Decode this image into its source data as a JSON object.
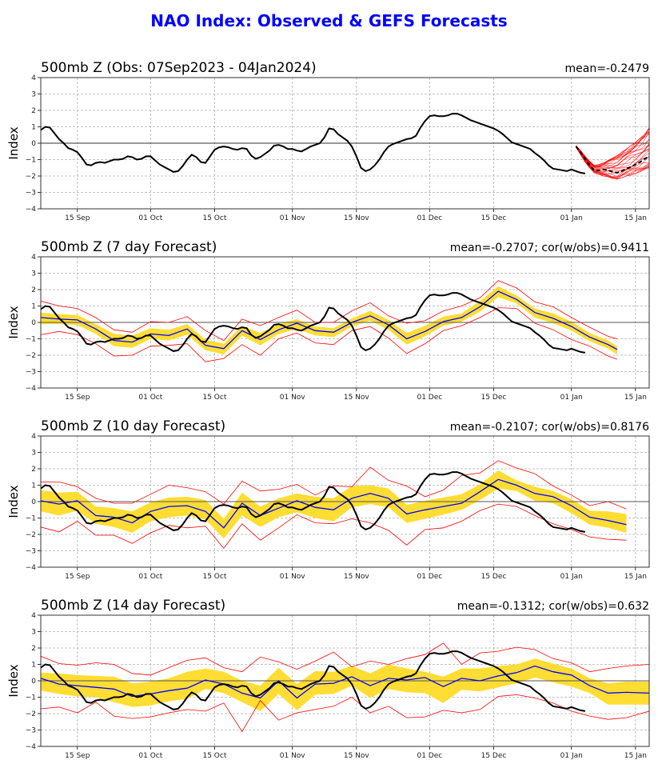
{
  "suptitle": "NAO Index: Observed & GEFS Forecasts",
  "colors": {
    "title": "#0000ff",
    "observed": "#000000",
    "ensemble_mean": "#0000ff",
    "spread_band": "#ffdd33",
    "extreme_lines": "#ff0000",
    "grid": "#b0b0b0"
  },
  "chart_data": [
    {
      "type": "line",
      "title": "500mb Z (Obs: 07Sep2023 - 04Jan2024)",
      "stat_label": "mean=-0.2479",
      "xlabel": "",
      "ylabel": "Index",
      "ylim": [
        -4,
        4
      ],
      "yticks": [
        "4",
        "3",
        "2",
        "1",
        "0",
        "-1",
        "-2",
        "-3",
        "-4"
      ],
      "xticks": [
        "15 Sep",
        "01 Oct",
        "15 Oct",
        "01 Nov",
        "15 Nov",
        "01 Dec",
        "15 Dec",
        "01 Jan",
        "15 Jan"
      ],
      "xtick_days": [
        8,
        24,
        38,
        55,
        69,
        85,
        99,
        116,
        130
      ],
      "xlim_days": [
        0,
        133
      ],
      "grid": true,
      "observed": {
        "name": "Observed NAO",
        "days": [
          0,
          1,
          2,
          3,
          4,
          5,
          6,
          7,
          8,
          9,
          10,
          11,
          12,
          13,
          14,
          15,
          16,
          17,
          18,
          19,
          20,
          21,
          22,
          23,
          24,
          25,
          26,
          27,
          28,
          29,
          30,
          31,
          32,
          33,
          34,
          35,
          36,
          37,
          38,
          39,
          40,
          41,
          42,
          43,
          44,
          45,
          46,
          47,
          48,
          49,
          50,
          51,
          52,
          53,
          54,
          55,
          56,
          57,
          58,
          59,
          60,
          61,
          62,
          63,
          64,
          65,
          66,
          67,
          68,
          69,
          70,
          71,
          72,
          73,
          74,
          75,
          76,
          77,
          78,
          79,
          80,
          81,
          82,
          83,
          84,
          85,
          86,
          87,
          88,
          89,
          90,
          91,
          92,
          93,
          94,
          95,
          96,
          97,
          98,
          99,
          100,
          101,
          102,
          103,
          104,
          105,
          106,
          107,
          108,
          109,
          110,
          111,
          112,
          113,
          114,
          115,
          116,
          117,
          118,
          119
        ],
        "values": [
          0.8,
          1.0,
          0.95,
          0.6,
          0.25,
          0.0,
          -0.3,
          -0.4,
          -0.55,
          -0.9,
          -1.3,
          -1.35,
          -1.2,
          -1.15,
          -1.2,
          -1.1,
          -1.0,
          -1.0,
          -0.95,
          -0.8,
          -0.85,
          -1.0,
          -0.95,
          -0.8,
          -0.8,
          -1.05,
          -1.3,
          -1.45,
          -1.6,
          -1.75,
          -1.7,
          -1.4,
          -1.0,
          -0.7,
          -0.85,
          -1.15,
          -1.2,
          -0.8,
          -0.4,
          -0.25,
          -0.2,
          -0.25,
          -0.35,
          -0.4,
          -0.3,
          -0.35,
          -0.75,
          -0.95,
          -0.85,
          -0.65,
          -0.45,
          -0.15,
          -0.1,
          -0.2,
          -0.35,
          -0.35,
          -0.45,
          -0.5,
          -0.35,
          -0.2,
          -0.1,
          0.0,
          0.35,
          0.9,
          0.85,
          0.55,
          0.35,
          0.15,
          -0.2,
          -0.8,
          -1.5,
          -1.7,
          -1.6,
          -1.35,
          -1.0,
          -0.55,
          -0.2,
          -0.05,
          0.05,
          0.15,
          0.25,
          0.3,
          0.45,
          0.95,
          1.35,
          1.65,
          1.7,
          1.65,
          1.65,
          1.7,
          1.8,
          1.8,
          1.7,
          1.55,
          1.4,
          1.3,
          1.2,
          1.1,
          1.0,
          0.9,
          0.75,
          0.55,
          0.3,
          0.05,
          -0.05,
          -0.15,
          -0.25,
          -0.35,
          -0.6,
          -0.8,
          -1.05,
          -1.35,
          -1.55,
          -1.6,
          -1.65,
          -1.7,
          -1.6,
          -1.7,
          -1.8,
          -1.85
        ]
      },
      "gefs_forecast": {
        "name": "GEFS ensemble members (from 04Jan2024)",
        "mean_days": [
          117,
          118,
          119,
          120,
          121,
          122,
          123,
          124,
          125,
          126,
          127,
          128,
          129,
          130,
          131,
          132,
          133
        ],
        "mean_values": [
          -0.2,
          -0.55,
          -0.95,
          -1.35,
          -1.65,
          -1.65,
          -1.6,
          -1.65,
          -1.75,
          -1.8,
          -1.7,
          -1.55,
          -1.45,
          -1.3,
          -1.15,
          -0.95,
          -0.8
        ],
        "member_min": [
          -0.25,
          -0.7,
          -1.15,
          -1.5,
          -1.8,
          -1.9,
          -2.0,
          -2.05,
          -2.15,
          -2.2,
          -2.1,
          -2.0,
          -1.95,
          -1.85,
          -1.75,
          -1.6,
          -1.5
        ],
        "member_max": [
          -0.15,
          -0.45,
          -0.8,
          -1.1,
          -1.35,
          -1.3,
          -1.2,
          -1.05,
          -0.9,
          -0.75,
          -0.55,
          -0.35,
          -0.15,
          0.05,
          0.3,
          0.55,
          0.95
        ],
        "member_count": 30
      }
    },
    {
      "type": "line",
      "title": "500mb Z (7 day Forecast)",
      "stat_label": "mean=-0.2707; cor(w/obs)=0.9411",
      "ylabel": "Index",
      "ylim": [
        -4,
        4
      ],
      "lead_days": 7,
      "mean": -0.2707,
      "correlation": 0.9411,
      "series_days": [
        0,
        4,
        8,
        12,
        16,
        20,
        24,
        28,
        32,
        36,
        40,
        44,
        48,
        52,
        56,
        60,
        64,
        68,
        72,
        76,
        80,
        84,
        88,
        92,
        96,
        100,
        104,
        108,
        112,
        116,
        120,
        124,
        126
      ],
      "ensemble_mean": [
        0.3,
        0.2,
        0.15,
        -0.4,
        -1.1,
        -1.2,
        -0.7,
        -0.8,
        -0.4,
        -1.4,
        -1.6,
        -0.5,
        -1.05,
        -0.45,
        -0.05,
        -0.5,
        -0.6,
        0.0,
        0.4,
        -0.15,
        -1.0,
        -0.55,
        0.05,
        0.3,
        0.95,
        1.9,
        1.4,
        0.6,
        0.25,
        -0.25,
        -0.9,
        -1.35,
        -1.65
      ],
      "spread_upper": [
        0.6,
        0.5,
        0.45,
        -0.1,
        -0.7,
        -0.8,
        -0.35,
        -0.45,
        -0.1,
        -1.05,
        -1.3,
        -0.2,
        -0.65,
        -0.1,
        0.2,
        -0.25,
        -0.35,
        0.25,
        0.7,
        0.15,
        -0.65,
        -0.2,
        0.35,
        0.55,
        1.3,
        2.2,
        1.65,
        0.85,
        0.55,
        0.05,
        -0.65,
        -1.1,
        -1.45
      ],
      "spread_lower": [
        -0.1,
        -0.1,
        -0.15,
        -0.7,
        -1.45,
        -1.55,
        -1.0,
        -1.1,
        -0.75,
        -1.7,
        -1.95,
        -0.8,
        -1.4,
        -0.7,
        -0.4,
        -0.8,
        -0.9,
        -0.25,
        0.1,
        -0.45,
        -1.35,
        -0.85,
        -0.2,
        0.05,
        0.65,
        1.55,
        1.15,
        0.3,
        -0.05,
        -0.5,
        -1.15,
        -1.6,
        -1.95
      ],
      "member_max": [
        1.3,
        1.0,
        0.85,
        0.3,
        -0.45,
        -0.6,
        0.05,
        0.0,
        0.35,
        -0.5,
        -1.1,
        0.2,
        -0.2,
        0.3,
        0.75,
        0.0,
        0.0,
        0.7,
        1.2,
        0.4,
        -0.05,
        0.1,
        0.7,
        1.0,
        1.5,
        2.55,
        2.1,
        1.25,
        0.95,
        0.3,
        -0.3,
        -0.85,
        -1.0
      ],
      "member_min": [
        -0.75,
        -0.55,
        -0.75,
        -1.3,
        -2.05,
        -2.0,
        -1.45,
        -1.4,
        -1.3,
        -2.4,
        -2.2,
        -1.35,
        -2.0,
        -1.0,
        -0.65,
        -1.25,
        -1.35,
        -0.5,
        -0.25,
        -0.95,
        -1.9,
        -1.3,
        -0.5,
        -0.2,
        0.3,
        0.9,
        0.85,
        -0.05,
        -0.45,
        -1.05,
        -1.45,
        -2.05,
        -2.25
      ]
    },
    {
      "type": "line",
      "title": "500mb Z (10 day Forecast)",
      "stat_label": "mean=-0.2107; cor(w/obs)=0.8176",
      "ylabel": "Index",
      "ylim": [
        -4,
        4
      ],
      "lead_days": 10,
      "mean": -0.2107,
      "correlation": 0.8176,
      "series_days": [
        0,
        4,
        8,
        12,
        16,
        20,
        24,
        28,
        32,
        36,
        40,
        44,
        48,
        52,
        56,
        60,
        64,
        68,
        72,
        76,
        80,
        84,
        88,
        92,
        96,
        100,
        104,
        108,
        112,
        116,
        120,
        124,
        128
      ],
      "ensemble_mean": [
        0.05,
        -0.15,
        0.05,
        -0.85,
        -0.95,
        -1.3,
        -0.6,
        -0.3,
        -0.25,
        -0.6,
        -1.6,
        -0.1,
        -0.85,
        -0.4,
        0.05,
        -0.35,
        -0.5,
        0.2,
        0.5,
        0.2,
        -0.75,
        -0.5,
        -0.3,
        -0.1,
        0.6,
        1.35,
        1.0,
        0.5,
        0.3,
        -0.25,
        -0.95,
        -1.15,
        -1.4
      ],
      "spread_upper": [
        0.7,
        0.55,
        0.6,
        -0.3,
        -0.4,
        -0.6,
        -0.05,
        0.25,
        0.3,
        0.1,
        -1.05,
        0.55,
        -0.3,
        0.2,
        0.5,
        0.3,
        0.2,
        0.95,
        1.0,
        0.8,
        -0.2,
        0.05,
        0.25,
        0.45,
        1.05,
        1.9,
        1.3,
        0.9,
        0.65,
        0.15,
        -0.55,
        -0.6,
        -0.75
      ],
      "spread_lower": [
        -0.6,
        -0.85,
        -0.55,
        -1.35,
        -1.55,
        -1.9,
        -1.2,
        -0.95,
        -0.85,
        -1.1,
        -2.25,
        -0.85,
        -1.55,
        -0.95,
        -0.65,
        -1.0,
        -1.2,
        -0.35,
        -0.15,
        -0.35,
        -1.3,
        -1.05,
        -0.8,
        -0.5,
        0.1,
        0.8,
        0.65,
        0.05,
        -0.1,
        -0.7,
        -1.4,
        -1.6,
        -1.9
      ],
      "member_max": [
        1.2,
        1.2,
        0.9,
        0.2,
        -0.1,
        -0.1,
        0.45,
        1.0,
        0.85,
        0.6,
        -0.15,
        1.25,
        0.65,
        0.75,
        1.05,
        0.4,
        0.95,
        0.9,
        2.1,
        1.3,
        0.95,
        0.3,
        0.7,
        1.6,
        1.75,
        2.5,
        2.05,
        1.7,
        0.95,
        0.4,
        -0.25,
        0.0,
        -0.45
      ],
      "member_min": [
        -1.55,
        -1.85,
        -1.2,
        -2.05,
        -2.05,
        -2.55,
        -1.9,
        -1.45,
        -1.6,
        -1.5,
        -2.85,
        -1.35,
        -2.35,
        -1.6,
        -0.8,
        -1.3,
        -1.35,
        -1.05,
        -1.3,
        -1.75,
        -2.65,
        -1.7,
        -1.6,
        -1.2,
        -0.55,
        -0.15,
        -0.3,
        -0.85,
        -1.35,
        -1.7,
        -2.15,
        -2.3,
        -2.35
      ]
    },
    {
      "type": "line",
      "title": "500mb Z (14 day Forecast)",
      "stat_label": "mean=-0.1312; cor(w/obs)=0.632",
      "ylabel": "Index",
      "ylim": [
        -4,
        4
      ],
      "lead_days": 14,
      "mean": -0.1312,
      "correlation": 0.632,
      "series_days": [
        0,
        4,
        8,
        12,
        16,
        20,
        24,
        28,
        32,
        36,
        40,
        44,
        48,
        52,
        56,
        60,
        64,
        68,
        72,
        76,
        80,
        84,
        88,
        92,
        96,
        100,
        104,
        108,
        112,
        116,
        120,
        124,
        128,
        133
      ],
      "ensemble_mean": [
        0.15,
        -0.2,
        -0.3,
        -0.4,
        -0.5,
        -0.95,
        -0.8,
        -0.6,
        -0.45,
        0.05,
        -0.2,
        -0.75,
        -1.05,
        0.0,
        -1.05,
        -0.2,
        -0.15,
        0.25,
        -0.3,
        0.15,
        0.05,
        0.2,
        -0.35,
        0.15,
        0.0,
        0.3,
        0.5,
        0.9,
        0.55,
        0.35,
        -0.3,
        -0.75,
        -0.7,
        -0.75
      ],
      "spread_upper": [
        0.5,
        0.45,
        0.35,
        0.3,
        0.25,
        -0.15,
        -0.05,
        0.15,
        0.55,
        0.75,
        0.55,
        0.0,
        -0.3,
        0.8,
        -0.2,
        0.6,
        0.55,
        0.9,
        0.45,
        1.0,
        0.75,
        0.55,
        0.25,
        0.75,
        0.75,
        0.9,
        1.0,
        1.35,
        1.05,
        0.75,
        0.15,
        -0.15,
        -0.05,
        -0.05
      ],
      "spread_lower": [
        -0.6,
        -0.8,
        -0.95,
        -1.0,
        -1.3,
        -1.6,
        -1.5,
        -1.25,
        -1.1,
        -0.5,
        -0.75,
        -1.3,
        -1.85,
        -0.8,
        -1.8,
        -0.85,
        -0.8,
        -0.3,
        -1.05,
        -0.5,
        -0.7,
        -0.75,
        -1.35,
        -0.55,
        -0.65,
        -0.4,
        -0.15,
        0.2,
        -0.1,
        -0.35,
        -0.75,
        -1.45,
        -1.45,
        -1.45
      ],
      "member_max": [
        1.5,
        1.05,
        0.95,
        1.1,
        1.0,
        0.45,
        0.35,
        0.8,
        1.25,
        1.4,
        0.8,
        0.55,
        1.45,
        1.15,
        0.7,
        1.2,
        1.75,
        0.85,
        1.2,
        1.0,
        1.35,
        1.6,
        2.3,
        1.0,
        1.7,
        1.8,
        2.05,
        1.9,
        1.35,
        1.1,
        0.55,
        0.75,
        0.9,
        1.0
      ],
      "member_min": [
        -1.7,
        -1.6,
        -1.95,
        -1.3,
        -2.15,
        -2.3,
        -2.2,
        -1.95,
        -1.75,
        -1.85,
        -1.35,
        -3.1,
        -1.2,
        -2.4,
        -1.95,
        -1.75,
        -1.55,
        -1.0,
        -1.95,
        -1.55,
        -2.25,
        -2.2,
        -1.8,
        -1.95,
        -1.75,
        -0.95,
        -0.85,
        -1.05,
        -1.35,
        -1.85,
        -2.15,
        -2.35,
        -2.25,
        -1.85
      ]
    }
  ]
}
